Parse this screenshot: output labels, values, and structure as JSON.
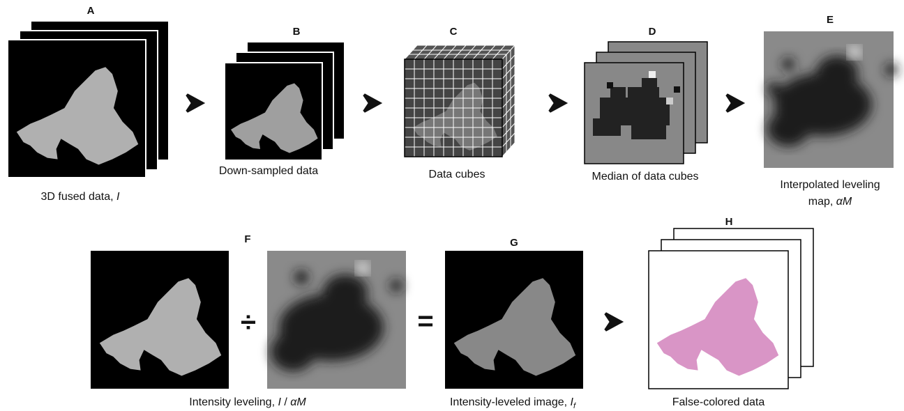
{
  "panels": [
    {
      "label": "A",
      "caption": [
        "3D fused data, ",
        "I"
      ]
    },
    {
      "label": "B",
      "caption": [
        "Down-sampled data"
      ]
    },
    {
      "label": "C",
      "caption": [
        "Data cubes"
      ]
    },
    {
      "label": "D",
      "caption": [
        "Median of  data cubes"
      ]
    },
    {
      "label": "E",
      "caption": [
        "Interpolated leveling",
        "map, ",
        "αM"
      ]
    },
    {
      "label": "F",
      "caption": [
        "Intensity leveling, ",
        "I",
        " / ",
        "αM"
      ]
    },
    {
      "label": "G",
      "caption": [
        "Intensity-leveled image, ",
        "I",
        "f"
      ]
    },
    {
      "label": "H",
      "caption": [
        "False-colored data"
      ]
    }
  ],
  "operators": [
    "÷",
    "="
  ]
}
